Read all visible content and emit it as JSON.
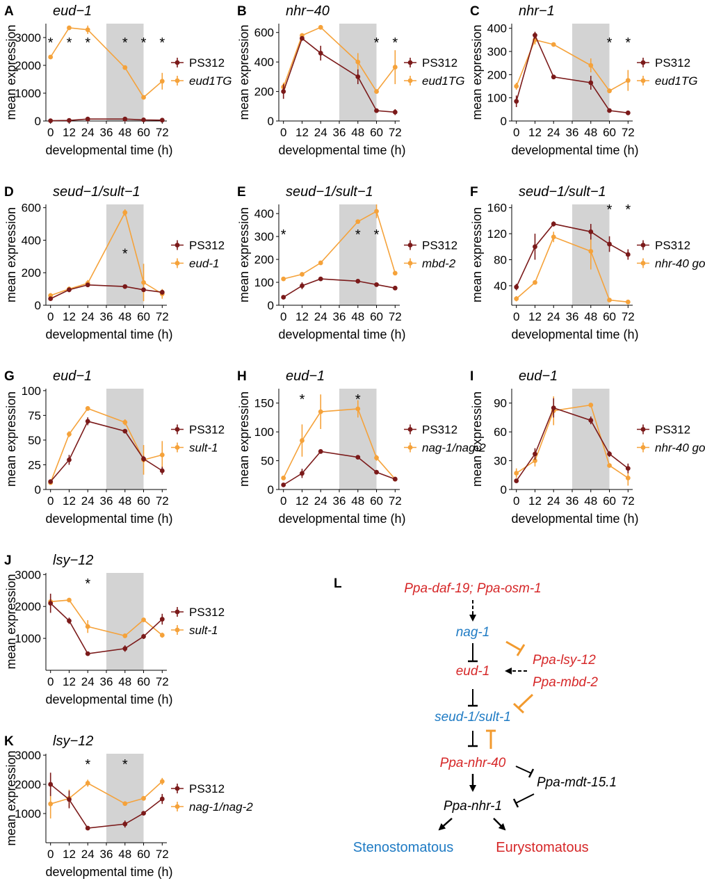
{
  "colors": {
    "ps312": "#7b1a1a",
    "mutant": "#f5a23a",
    "band": "#d3d3d3",
    "red": "#d62728",
    "blue": "#1f7bc4",
    "orange_inhib": "#f29a2e"
  },
  "chart_data": [
    {
      "letter": "A",
      "title": "eud−1",
      "type": "line",
      "xlabel": "developmental time (h)",
      "ylabel": "mean expression",
      "x_ticks": [
        0,
        12,
        24,
        36,
        48,
        60,
        72
      ],
      "ylim": [
        0,
        3500
      ],
      "y_ticks": [
        0,
        1000,
        2000,
        3000
      ],
      "shade": [
        36,
        60
      ],
      "series": [
        {
          "name": "PS312",
          "x": [
            0,
            12,
            24,
            48,
            60,
            72
          ],
          "y": [
            10,
            20,
            70,
            70,
            40,
            30
          ],
          "err": [
            0,
            0,
            0,
            0,
            0,
            0
          ]
        },
        {
          "name": "eud1TG",
          "x": [
            0,
            12,
            24,
            48,
            60,
            72
          ],
          "y": [
            2300,
            3350,
            3280,
            1920,
            850,
            1430
          ],
          "err": [
            60,
            40,
            150,
            40,
            50,
            300
          ]
        }
      ],
      "stars": [
        0,
        12,
        24,
        48,
        60,
        72
      ]
    },
    {
      "letter": "B",
      "title": "nhr−40",
      "type": "line",
      "xlabel": "developmental time (h)",
      "ylabel": "mean expression",
      "x_ticks": [
        0,
        12,
        24,
        36,
        48,
        60,
        72
      ],
      "ylim": [
        0,
        660
      ],
      "y_ticks": [
        0,
        200,
        400,
        600
      ],
      "shade": [
        36,
        60
      ],
      "series": [
        {
          "name": "PS312",
          "x": [
            0,
            12,
            24,
            48,
            60,
            72
          ],
          "y": [
            200,
            560,
            460,
            300,
            70,
            60
          ],
          "err": [
            50,
            15,
            50,
            50,
            8,
            20
          ]
        },
        {
          "name": "eud1TG",
          "x": [
            0,
            12,
            24,
            48,
            60,
            72
          ],
          "y": [
            230,
            580,
            635,
            400,
            200,
            365
          ],
          "err": [
            30,
            15,
            8,
            60,
            10,
            115
          ]
        }
      ],
      "stars": [
        60,
        72
      ]
    },
    {
      "letter": "C",
      "title": "nhr−1",
      "type": "line",
      "xlabel": "developmental time (h)",
      "ylabel": "mean expression",
      "x_ticks": [
        0,
        12,
        24,
        36,
        48,
        60,
        72
      ],
      "ylim": [
        0,
        420
      ],
      "y_ticks": [
        0,
        100,
        200,
        300,
        400
      ],
      "shade": [
        36,
        60
      ],
      "series": [
        {
          "name": "PS312",
          "x": [
            0,
            12,
            24,
            48,
            60,
            72
          ],
          "y": [
            85,
            370,
            190,
            165,
            45,
            35
          ],
          "err": [
            25,
            15,
            5,
            30,
            5,
            10
          ]
        },
        {
          "name": "eud1TG",
          "x": [
            0,
            12,
            24,
            48,
            60,
            72
          ],
          "y": [
            150,
            350,
            330,
            240,
            130,
            175
          ],
          "err": [
            15,
            20,
            5,
            30,
            10,
            45
          ]
        }
      ],
      "stars": [
        60,
        72
      ]
    },
    {
      "letter": "D",
      "title": "seud−1/sult−1",
      "type": "line",
      "xlabel": "developmental time (h)",
      "ylabel": "mean expression",
      "x_ticks": [
        0,
        12,
        24,
        36,
        48,
        60,
        72
      ],
      "ylim": [
        0,
        620
      ],
      "y_ticks": [
        0,
        200,
        400,
        600
      ],
      "shade": [
        36,
        60
      ],
      "series": [
        {
          "name": "PS312",
          "x": [
            0,
            12,
            24,
            48,
            60,
            72
          ],
          "y": [
            40,
            95,
            125,
            115,
            95,
            80
          ],
          "err": [
            10,
            15,
            10,
            5,
            5,
            15
          ]
        },
        {
          "name": "eud-1",
          "x": [
            0,
            12,
            24,
            48,
            60,
            72
          ],
          "y": [
            60,
            100,
            135,
            570,
            140,
            70
          ],
          "err": [
            15,
            15,
            20,
            20,
            115,
            30
          ]
        }
      ],
      "stars": [
        48
      ]
    },
    {
      "letter": "E",
      "title": "seud−1/sult−1",
      "type": "line",
      "xlabel": "developmental time (h)",
      "ylabel": "mean expression",
      "x_ticks": [
        0,
        12,
        24,
        36,
        48,
        60,
        72
      ],
      "ylim": [
        0,
        440
      ],
      "y_ticks": [
        0,
        100,
        200,
        300,
        400
      ],
      "shade": [
        36,
        60
      ],
      "series": [
        {
          "name": "PS312",
          "x": [
            0,
            12,
            24,
            48,
            60,
            72
          ],
          "y": [
            35,
            85,
            115,
            105,
            90,
            75
          ],
          "err": [
            5,
            15,
            5,
            5,
            5,
            5
          ]
        },
        {
          "name": "mbd-2",
          "x": [
            0,
            12,
            24,
            48,
            60,
            72
          ],
          "y": [
            115,
            135,
            185,
            365,
            410,
            140
          ],
          "err": [
            5,
            5,
            5,
            5,
            30,
            5
          ]
        }
      ],
      "stars": [
        0,
        48,
        60
      ]
    },
    {
      "letter": "F",
      "title": "seud−1/sult−1",
      "type": "line",
      "xlabel": "developmental time (h)",
      "ylabel": "mean expression",
      "x_ticks": [
        0,
        12,
        24,
        36,
        48,
        60,
        72
      ],
      "ylim": [
        10,
        165
      ],
      "y_ticks": [
        40,
        80,
        120,
        160
      ],
      "shade": [
        36,
        60
      ],
      "series": [
        {
          "name": "PS312",
          "x": [
            0,
            12,
            24,
            48,
            60,
            72
          ],
          "y": [
            38,
            100,
            135,
            123,
            104,
            88
          ],
          "err": [
            5,
            20,
            4,
            12,
            12,
            8
          ]
        },
        {
          "name": "nhr-40 gof",
          "x": [
            0,
            12,
            24,
            48,
            60,
            72
          ],
          "y": [
            20,
            45,
            115,
            93,
            18,
            15
          ],
          "err": [
            4,
            2,
            8,
            28,
            2,
            2
          ]
        }
      ],
      "stars": [
        60,
        72
      ]
    },
    {
      "letter": "G",
      "title": "eud−1",
      "type": "line",
      "xlabel": "developmental time (h)",
      "ylabel": "mean expression",
      "x_ticks": [
        0,
        12,
        24,
        36,
        48,
        60,
        72
      ],
      "ylim": [
        0,
        102
      ],
      "y_ticks": [
        0,
        25,
        50,
        75,
        100
      ],
      "shade": [
        36,
        60
      ],
      "series": [
        {
          "name": "PS312",
          "x": [
            0,
            12,
            24,
            48,
            60,
            72
          ],
          "y": [
            8,
            30,
            69,
            59,
            31,
            19
          ],
          "err": [
            1,
            5,
            4,
            2,
            3,
            4
          ]
        },
        {
          "name": "sult-1",
          "x": [
            0,
            12,
            24,
            48,
            60,
            72
          ],
          "y": [
            7,
            56,
            82,
            68,
            30,
            35
          ],
          "err": [
            1,
            3,
            1,
            3,
            15,
            14
          ]
        }
      ],
      "stars": []
    },
    {
      "letter": "H",
      "title": "eud−1",
      "type": "line",
      "xlabel": "developmental time (h)",
      "ylabel": "mean expression",
      "x_ticks": [
        0,
        12,
        24,
        36,
        48,
        60,
        72
      ],
      "ylim": [
        0,
        175
      ],
      "y_ticks": [
        0,
        50,
        100,
        150
      ],
      "shade": [
        36,
        60
      ],
      "series": [
        {
          "name": "PS312",
          "x": [
            0,
            12,
            24,
            48,
            60,
            72
          ],
          "y": [
            8,
            28,
            66,
            56,
            30,
            18
          ],
          "err": [
            2,
            8,
            3,
            2,
            2,
            2
          ]
        },
        {
          "name": "nag-1/nag-2",
          "x": [
            0,
            12,
            24,
            48,
            60,
            72
          ],
          "y": [
            20,
            85,
            135,
            140,
            55,
            18
          ],
          "err": [
            3,
            28,
            30,
            15,
            5,
            3
          ]
        }
      ],
      "stars": [
        12,
        48
      ]
    },
    {
      "letter": "I",
      "title": "eud−1",
      "type": "line",
      "xlabel": "developmental time (h)",
      "ylabel": "mean expression",
      "x_ticks": [
        0,
        12,
        24,
        36,
        48,
        60,
        72
      ],
      "ylim": [
        0,
        105
      ],
      "y_ticks": [
        0,
        30,
        60,
        90
      ],
      "shade": [
        36,
        60
      ],
      "series": [
        {
          "name": "PS312",
          "x": [
            0,
            12,
            24,
            48,
            60,
            72
          ],
          "y": [
            9,
            37,
            85,
            72,
            37,
            22
          ],
          "err": [
            2,
            6,
            10,
            4,
            3,
            5
          ]
        },
        {
          "name": "nhr-40 gof",
          "x": [
            0,
            12,
            24,
            48,
            60,
            72
          ],
          "y": [
            17,
            30,
            82,
            88,
            25,
            12
          ],
          "err": [
            5,
            6,
            15,
            1,
            2,
            8
          ]
        }
      ],
      "stars": []
    },
    {
      "letter": "J",
      "title": "lsy−12",
      "type": "line",
      "xlabel": "developmental time (h)",
      "ylabel": "mean expression",
      "x_ticks": [
        0,
        12,
        24,
        36,
        48,
        60,
        72
      ],
      "ylim": [
        0,
        3050
      ],
      "y_ticks": [
        1000,
        2000,
        3000
      ],
      "shade": [
        36,
        60
      ],
      "series": [
        {
          "name": "PS312",
          "x": [
            0,
            12,
            24,
            48,
            60,
            72
          ],
          "y": [
            2100,
            1550,
            520,
            680,
            1060,
            1600
          ],
          "err": [
            300,
            100,
            30,
            100,
            80,
            170
          ]
        },
        {
          "name": "sult-1",
          "x": [
            0,
            12,
            24,
            48,
            60,
            72
          ],
          "y": [
            2150,
            2200,
            1370,
            1080,
            1580,
            1100
          ],
          "err": [
            150,
            50,
            200,
            30,
            50,
            80
          ]
        }
      ],
      "stars": [
        24
      ]
    },
    {
      "letter": "K",
      "title": "lsy−12",
      "type": "line",
      "xlabel": "developmental time (h)",
      "ylabel": "mean expression",
      "x_ticks": [
        0,
        12,
        24,
        36,
        48,
        60,
        72
      ],
      "ylim": [
        0,
        3050
      ],
      "y_ticks": [
        1000,
        2000,
        3000
      ],
      "shade": [
        36,
        60
      ],
      "series": [
        {
          "name": "PS312",
          "x": [
            0,
            12,
            24,
            48,
            60,
            72
          ],
          "y": [
            2000,
            1480,
            500,
            640,
            1010,
            1500
          ],
          "err": [
            400,
            300,
            30,
            120,
            60,
            170
          ]
        },
        {
          "name": "nag-1/nag-2",
          "x": [
            0,
            12,
            24,
            48,
            60,
            72
          ],
          "y": [
            1330,
            1520,
            2040,
            1340,
            1520,
            2100
          ],
          "err": [
            500,
            300,
            120,
            60,
            50,
            120
          ]
        }
      ],
      "stars": [
        24,
        48
      ]
    }
  ],
  "diagram": {
    "letter": "L",
    "nodes": {
      "daf19": "Ppa-daf-19; Ppa-osm-1",
      "nag1": "nag-1",
      "eud1": "eud-1",
      "lsy12": "Ppa-lsy-12",
      "mbd2": "Ppa-mbd-2",
      "sult1": "seud-1/sult-1",
      "nhr40": "Ppa-nhr-40",
      "mdt15": "Ppa-mdt-15.1",
      "nhr1": "Ppa-nhr-1",
      "steno": "Stenostomatous",
      "eury": "Eurystomatous"
    }
  }
}
